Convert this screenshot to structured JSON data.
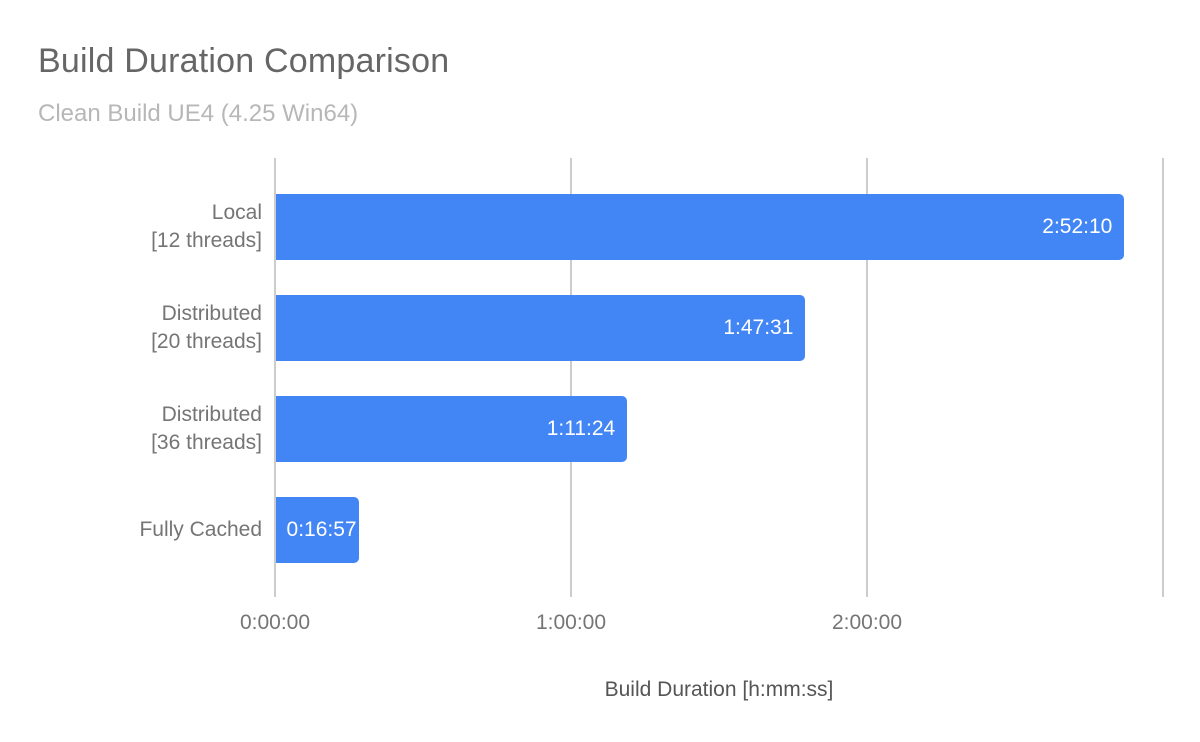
{
  "chart": {
    "title": "Build Duration Comparison",
    "subtitle": "Clean Build UE4 (4.25 Win64)",
    "xlabel": "Build Duration [h:mm:ss]"
  },
  "chart_data": {
    "type": "bar",
    "orientation": "horizontal",
    "title": "Build Duration Comparison",
    "subtitle": "Clean Build UE4 (4.25 Win64)",
    "xlabel": "Build Duration [h:mm:ss]",
    "categories": [
      "Local\n[12 threads]",
      "Distributed\n[20 threads]",
      "Distributed\n[36 threads]",
      "Fully Cached"
    ],
    "values_hms": [
      "2:52:10",
      "1:47:31",
      "1:11:24",
      "0:16:57"
    ],
    "values_seconds": [
      10330,
      6451,
      4284,
      1017
    ],
    "x_tick_labels": [
      "0:00:00",
      "1:00:00",
      "2:00:00"
    ],
    "x_gridline_hours": [
      0,
      1,
      2,
      3
    ],
    "xlim_hours": [
      0,
      3
    ],
    "grid": true,
    "legend": "none",
    "bar_color": "#4285f4",
    "value_label_color": "#ffffff",
    "gridline_color": "#cccccc",
    "label_color": "#757575",
    "title_color": "#666666",
    "subtitle_color": "#b7b7b7"
  }
}
